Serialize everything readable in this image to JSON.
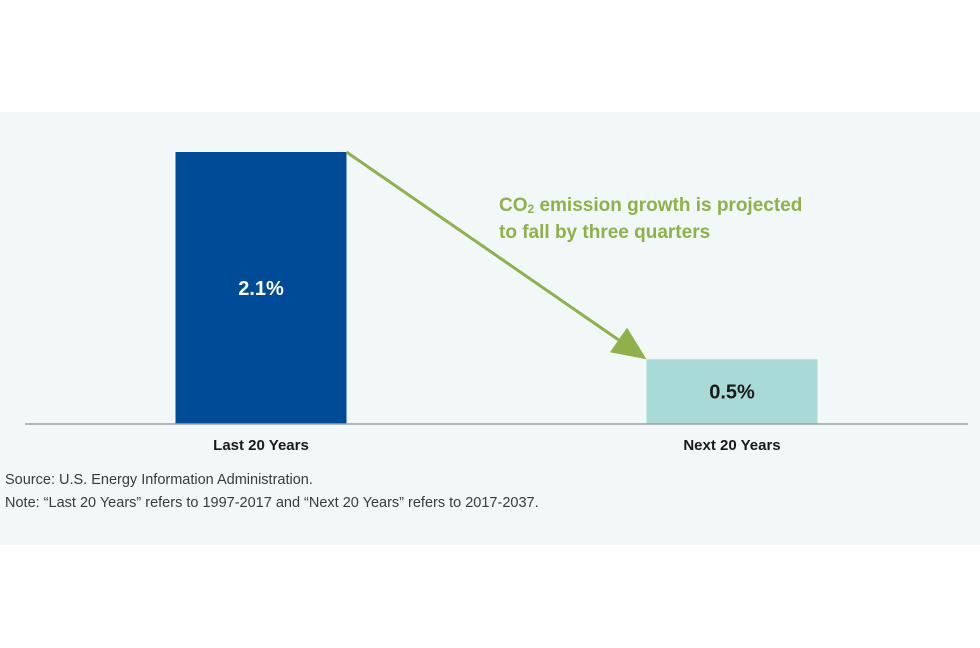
{
  "chart_data": {
    "type": "bar",
    "categories": [
      "Last 20 Years",
      "Next 20 Years"
    ],
    "values": [
      2.1,
      0.5
    ],
    "value_labels": [
      "2.1%",
      "0.5%"
    ],
    "unit": "%",
    "ylim": [
      0,
      2.1
    ],
    "grid": false,
    "legend": "none",
    "bar_colors": [
      "#004b98",
      "#a8dbd7"
    ],
    "value_label_colors": [
      "#ffffff",
      "#1a1a1a"
    ],
    "annotation": {
      "line1_prefix": "CO",
      "line1_subscript": "2",
      "line1_rest": " emission growth is projected",
      "line2": "to fall by three quarters",
      "color": "#8fb04a"
    }
  },
  "colors": {
    "panel_background": "#f2f8f7",
    "axis": "#9aa0a0",
    "text": "#1a1a1a"
  },
  "footnotes": {
    "source": "Source: U.S. Energy Information Administration.",
    "note": "Note: “Last 20 Years” refers to 1997-2017 and “Next 20 Years” refers to 2017-2037."
  }
}
